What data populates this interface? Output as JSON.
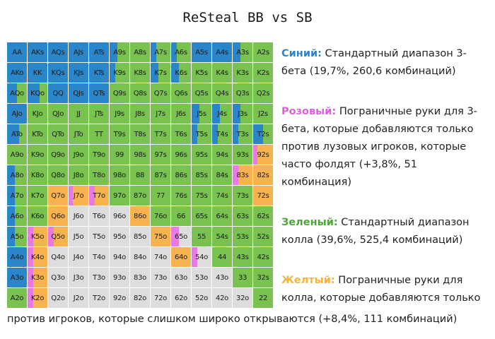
{
  "title": "ReSteal BB vs SB",
  "colors": {
    "blue": "#2a86c9",
    "pink": "#e77be3",
    "green": "#79c24f",
    "yellow": "#f7b34f",
    "gray": "#dddddd"
  },
  "legend": {
    "blue": {
      "key": "Синий:",
      "color": "#2a86c9",
      "text": " Стандартный диапазон 3-бета (19,7%, 260,6 комбинаций)"
    },
    "pink": {
      "key": "Розовый:",
      "color": "#dd5fd8",
      "text": " Пограничные руки для 3-бета, которые добавляются только против лузовых игроков, которые часто фолдят (+3,8%, 51 комбинация)"
    },
    "green": {
      "key": "Зеленый:",
      "color": "#4ea53a",
      "text": " Стандартный диапазон колла (39,6%, 525,4 комбинаций)"
    },
    "yellow": {
      "key": "Желтый:",
      "color": "#f2b43a",
      "text": " Пограничные руки для колла, которые добавляются только"
    },
    "yellow_tail": "против игроков, которые слишком широко открываются (+8,4%, 111 комбинаций)"
  },
  "chart_data": {
    "type": "heatmap",
    "title": "ReSteal BB vs SB",
    "categories": [
      "Синий",
      "Розовый",
      "Зеленый",
      "Желтый"
    ],
    "rows": [
      [
        "AA",
        "AKs",
        "AQs",
        "AJs",
        "ATs",
        "A9s",
        "A8s",
        "A7s",
        "A6s",
        "A5s",
        "A4s",
        "A3s",
        "A2s"
      ],
      [
        "AKo",
        "KK",
        "KQs",
        "KJs",
        "KTs",
        "K9s",
        "K8s",
        "K7s",
        "K6s",
        "K5s",
        "K4s",
        "K3s",
        "K2s"
      ],
      [
        "AQo",
        "KQo",
        "QQ",
        "QJs",
        "QTs",
        "Q9s",
        "Q8s",
        "Q7s",
        "Q6s",
        "Q5s",
        "Q4s",
        "Q3s",
        "Q2s"
      ],
      [
        "AJo",
        "KJo",
        "QJo",
        "JJ",
        "JTs",
        "J9s",
        "J8s",
        "J7s",
        "J6s",
        "J5s",
        "J4s",
        "J3s",
        "J2s"
      ],
      [
        "ATo",
        "KTo",
        "QTo",
        "JTo",
        "TT",
        "T9s",
        "T8s",
        "T7s",
        "T6s",
        "T5s",
        "T4s",
        "T3s",
        "T2s"
      ],
      [
        "A9o",
        "K9o",
        "Q9o",
        "J9o",
        "T9o",
        "99",
        "98s",
        "97s",
        "96s",
        "95s",
        "94s",
        "93s",
        "92s"
      ],
      [
        "A8o",
        "K8o",
        "Q8o",
        "J8o",
        "T8o",
        "98o",
        "88",
        "87s",
        "86s",
        "85s",
        "84s",
        "83s",
        "82s"
      ],
      [
        "A7o",
        "K7o",
        "Q7o",
        "J7o",
        "T7o",
        "97o",
        "87o",
        "77",
        "76s",
        "75s",
        "74s",
        "73s",
        "72s"
      ],
      [
        "A6o",
        "K6o",
        "Q6o",
        "J6o",
        "T6o",
        "96o",
        "86o",
        "76o",
        "66",
        "65s",
        "64s",
        "63s",
        "62s"
      ],
      [
        "A5o",
        "K5o",
        "Q5o",
        "J5o",
        "T5o",
        "95o",
        "85o",
        "75o",
        "65o",
        "55",
        "54s",
        "53s",
        "52s"
      ],
      [
        "A4o",
        "K4o",
        "Q4o",
        "J4o",
        "T4o",
        "94o",
        "84o",
        "74o",
        "64o",
        "54o",
        "44",
        "43s",
        "42s"
      ],
      [
        "A3o",
        "K3o",
        "Q3o",
        "J3o",
        "T3o",
        "93o",
        "83o",
        "73o",
        "63o",
        "53o",
        "43o",
        "33",
        "32s"
      ],
      [
        "A2o",
        "K2o",
        "Q2o",
        "J2o",
        "T2o",
        "92o",
        "82o",
        "72o",
        "62o",
        "52o",
        "42o",
        "32o",
        "22"
      ]
    ],
    "mix": [
      [
        "B",
        "B",
        "B",
        "B",
        "B",
        "B.4,G.6",
        "G",
        "B.3,G.7",
        "B.3,G.7",
        "B",
        "B",
        "B.4,G.6",
        "G"
      ],
      [
        "B",
        "B",
        "B",
        "B",
        "B",
        "B.3,G.7",
        "G",
        "B.4,G.6",
        "B.4,G.6",
        "G",
        "G",
        "G",
        "G"
      ],
      [
        "B.5,G.5",
        "B.6,G.4",
        "B",
        "B",
        "B",
        "G",
        "G",
        "G",
        "G",
        "G",
        "G",
        "G",
        "G"
      ],
      [
        "B",
        "G",
        "G",
        "G",
        "G",
        "G",
        "G",
        "G",
        "G",
        "B.4,G.6",
        "B.4,G.6",
        "B.4,G.6",
        "G"
      ],
      [
        "B.6,G.4",
        "G",
        "G",
        "G",
        "G",
        "G",
        "G",
        "G",
        "G",
        "B.3,G.7",
        "B.3,G.7",
        "B.3,G.7",
        "B.5,G.5"
      ],
      [
        "G",
        "G",
        "G",
        "G",
        "G",
        "G",
        "G",
        "G",
        "G",
        "G",
        "G",
        "G",
        "P.2,Y.8"
      ],
      [
        "B.4,G.6",
        "G",
        "G",
        "G",
        "G",
        "G",
        "G",
        "G",
        "G",
        "G",
        "G",
        "P.3,Y.7",
        "Y"
      ],
      [
        "B.4,G.6",
        "G",
        "Y",
        "P.2,Y.8",
        "P.3,Y.7",
        "G",
        "G",
        "G",
        "G",
        "G",
        "G",
        "G",
        "Y"
      ],
      [
        "B.4,G.6",
        "G",
        "Y",
        "N",
        "N",
        "N",
        "Y",
        "G",
        "G",
        "G",
        "G",
        "G",
        "G"
      ],
      [
        "B.4,G.6",
        "P.3,Y.7",
        "P.3,Y.7",
        "N",
        "N",
        "N",
        "N",
        "Y",
        "P.4,N.6",
        "G",
        "G",
        "G",
        "G"
      ],
      [
        "B",
        "P.3,Y.7",
        "N",
        "N",
        "N",
        "N",
        "N",
        "N",
        "Y",
        "P.3,N.7",
        "G",
        "G",
        "G"
      ],
      [
        "B",
        "P.3,Y.7",
        "N",
        "N",
        "N",
        "N",
        "N",
        "N",
        "N",
        "N",
        "N",
        "G",
        "G"
      ],
      [
        "G",
        "P.3,Y.7",
        "N",
        "N",
        "N",
        "N",
        "N",
        "N",
        "N",
        "N",
        "N",
        "N",
        "G"
      ]
    ]
  }
}
